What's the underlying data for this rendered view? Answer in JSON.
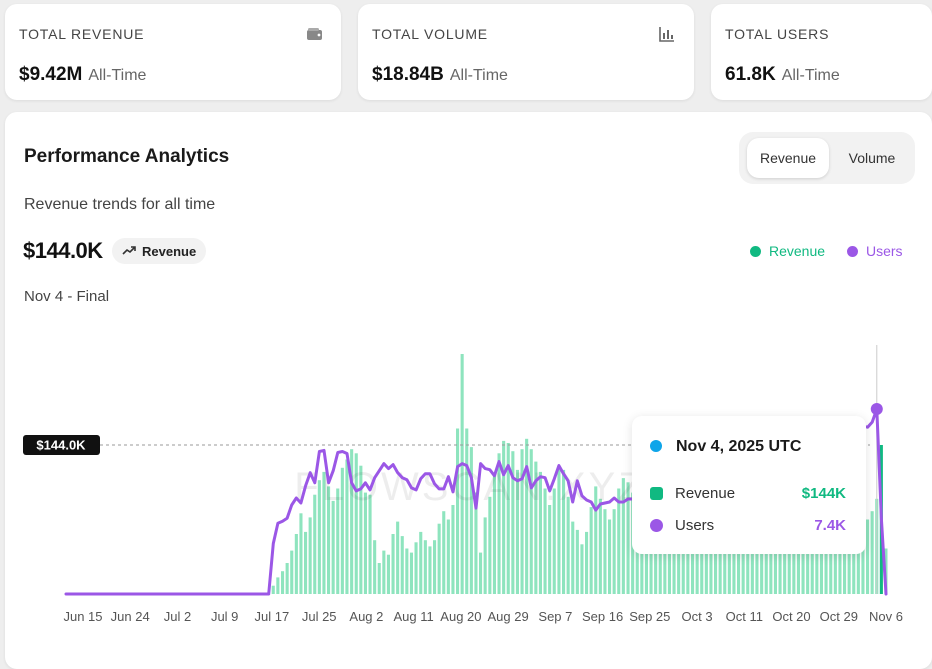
{
  "stats": [
    {
      "label": "TOTAL REVENUE",
      "value": "$9.42M",
      "sub": "All-Time",
      "icon": "wallet-icon"
    },
    {
      "label": "TOTAL VOLUME",
      "value": "$18.84B",
      "sub": "All-Time",
      "icon": "bar-chart-icon"
    },
    {
      "label": "TOTAL USERS",
      "value": "61.8K",
      "sub": "All-Time",
      "icon": ""
    }
  ],
  "panel": {
    "title": "Performance Analytics",
    "toggle": {
      "active": "Revenue",
      "inactive": "Volume"
    },
    "subtitle": "Revenue trends for all time",
    "value": "$144.0K",
    "metric_pill": "Revenue",
    "date_label": "Nov 4 - Final"
  },
  "colors": {
    "revenue": "#10b981",
    "revenue_bar": "#8ee4be",
    "users": "#9b57e6",
    "tooltip_dot": "#0ea5e9"
  },
  "tooltip": {
    "title": "Nov 4, 2025 UTC",
    "rows": [
      {
        "label": "Revenue",
        "value": "$144K"
      },
      {
        "label": "Users",
        "value": "7.4K"
      }
    ]
  },
  "chart_data": {
    "type": "bar",
    "watermark": "FLOWSCAN.XYZ",
    "x_tick_labels": [
      "Jun 15",
      "Jun 24",
      "Jul 2",
      "Jul 9",
      "Jul 17",
      "Jul 25",
      "Aug 2",
      "Aug 11",
      "Aug 20",
      "Aug 29",
      "Sep 7",
      "Sep 16",
      "Sep 25",
      "Oct 3",
      "Oct 11",
      "Oct 20",
      "Oct 29",
      "Nov 6"
    ],
    "reference_line_label": "$144.0K",
    "reference_value": 144,
    "series": [
      {
        "name": "Revenue",
        "axis": "left",
        "values": [
          0,
          0,
          0,
          0,
          0,
          0,
          0,
          0,
          0,
          0,
          0,
          0,
          0,
          0,
          0,
          0,
          0,
          0,
          0,
          0,
          0,
          0,
          0,
          0,
          0,
          0,
          0,
          0,
          0,
          0,
          0,
          0,
          0,
          0,
          0,
          0,
          0,
          0,
          0,
          0,
          0,
          0,
          0,
          0,
          0,
          8,
          16,
          22,
          30,
          42,
          58,
          78,
          60,
          74,
          96,
          110,
          118,
          104,
          90,
          102,
          122,
          130,
          140,
          136,
          124,
          98,
          96,
          52,
          30,
          42,
          38,
          58,
          70,
          56,
          44,
          40,
          50,
          60,
          52,
          46,
          52,
          68,
          80,
          72,
          86,
          160,
          232,
          160,
          142,
          98,
          40,
          74,
          94,
          116,
          136,
          148,
          146,
          138,
          120,
          140,
          150,
          140,
          128,
          118,
          102,
          86,
          102,
          124,
          120,
          94,
          70,
          62,
          48,
          60,
          84,
          104,
          92,
          82,
          72,
          82,
          102,
          112,
          108,
          98,
          96,
          120,
          112,
          94,
          80,
          60,
          48,
          42,
          80,
          82,
          70,
          52,
          50,
          60,
          72,
          100,
          116,
          128,
          100,
          88,
          70,
          66,
          60,
          58,
          62,
          54,
          54,
          52,
          58,
          60,
          54,
          52,
          56,
          58,
          56,
          54,
          56,
          58,
          54,
          52,
          54,
          56,
          56,
          60,
          62,
          60,
          58,
          62,
          66,
          70,
          72,
          80,
          92,
          144,
          44
        ]
      },
      {
        "name": "Users",
        "axis": "right",
        "values": [
          0,
          0,
          0,
          0,
          0,
          0,
          0,
          0,
          0,
          0,
          0,
          0,
          0,
          0,
          0,
          0,
          0,
          0,
          0,
          0,
          0,
          0,
          0,
          0,
          0,
          0,
          0,
          0,
          0,
          0,
          0,
          0,
          0,
          0,
          0,
          0,
          0,
          0,
          0,
          0,
          0,
          0,
          0,
          0,
          0,
          5.0,
          7.0,
          7.2,
          7.5,
          8.8,
          9.5,
          9.0,
          10.7,
          12.0,
          11.0,
          14.1,
          14.2,
          11.0,
          12.2,
          14.0,
          14.1,
          13.9,
          11.0,
          10.2,
          10.4,
          11.0,
          10.3,
          11.5,
          12.2,
          12.9,
          12.4,
          12.8,
          12.0,
          11.5,
          11.3,
          10.5,
          10.3,
          11.4,
          11.9,
          11.9,
          10.9,
          10.4,
          10.4,
          11.6,
          10.1,
          12.6,
          12.9,
          12.7,
          11.5,
          8.5,
          12.9,
          12.4,
          12.3,
          11.7,
          13.1,
          11.8,
          12.7,
          11.5,
          11.2,
          11.4,
          12.6,
          10.5,
          11.2,
          11.6,
          11.5,
          10.2,
          11.4,
          12.7,
          11.9,
          11.2,
          9.1,
          11.2,
          9.7,
          9.3,
          9.1,
          8.3,
          8.9,
          9.0,
          9.1,
          9.5,
          9.1,
          9.1,
          9.4,
          9.4,
          9.2,
          9.6,
          9.7,
          9.2,
          9.5,
          9.4,
          10.0,
          9.9,
          11.6,
          11.5,
          11.7,
          11.6,
          11.3,
          12.9,
          13.5,
          12.9,
          12.6,
          12.8,
          12.8,
          11.6,
          11.1,
          10.8,
          11.1,
          12.7,
          12.7,
          13.3,
          13.1,
          13.6,
          14.1,
          14.3,
          14.4,
          14.8,
          15.0,
          14.6,
          14.4,
          14.8,
          15.0,
          15.4,
          15.6,
          15.8,
          16.0,
          15.7,
          15.5,
          15.3,
          15.4,
          15.8,
          16.0,
          16.4,
          16.7,
          16.6,
          16.5,
          17.0,
          18.3,
          7.4,
          0
        ]
      }
    ]
  }
}
